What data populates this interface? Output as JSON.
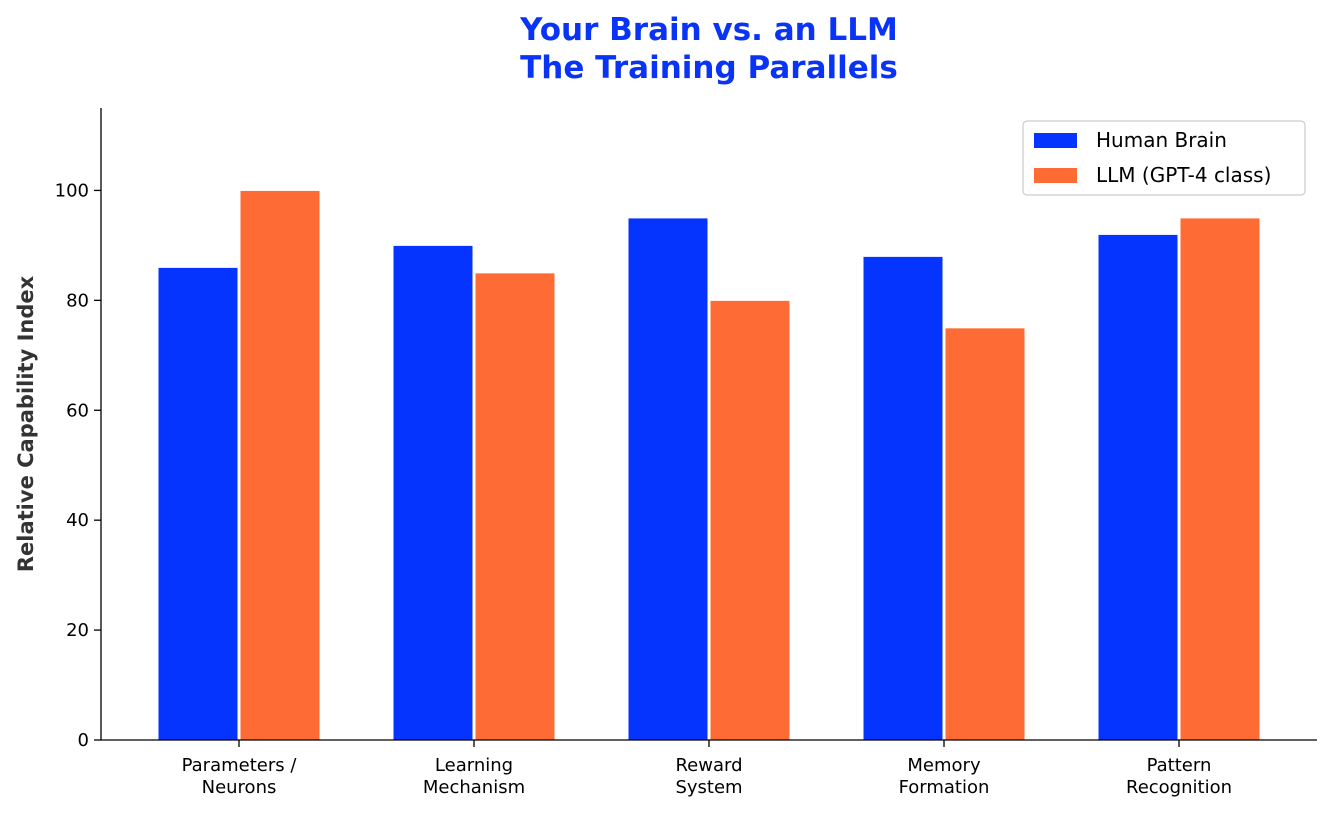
{
  "chart_data": {
    "type": "bar",
    "title": "Your Brain vs. an LLM\nThe Training Parallels",
    "title_lines": [
      "Your Brain vs. an LLM",
      "The Training Parallels"
    ],
    "title_color": "#0a34f5",
    "xlabel": "",
    "ylabel": "Relative Capability Index",
    "ylim": [
      0,
      115
    ],
    "yticks": [
      0,
      20,
      40,
      60,
      80,
      100
    ],
    "grid": false,
    "legend_position": "top-right",
    "categories": [
      [
        "Parameters /",
        "Neurons"
      ],
      [
        "Learning",
        "Mechanism"
      ],
      [
        "Reward",
        "System"
      ],
      [
        "Memory",
        "Formation"
      ],
      [
        "Pattern",
        "Recognition"
      ]
    ],
    "series": [
      {
        "name": "Human Brain",
        "color": "#0534ff",
        "values": [
          86,
          90,
          95,
          88,
          92
        ]
      },
      {
        "name": "LLM (GPT-4 class)",
        "color": "#ff6b35",
        "values": [
          100,
          85,
          80,
          75,
          95
        ]
      }
    ]
  }
}
